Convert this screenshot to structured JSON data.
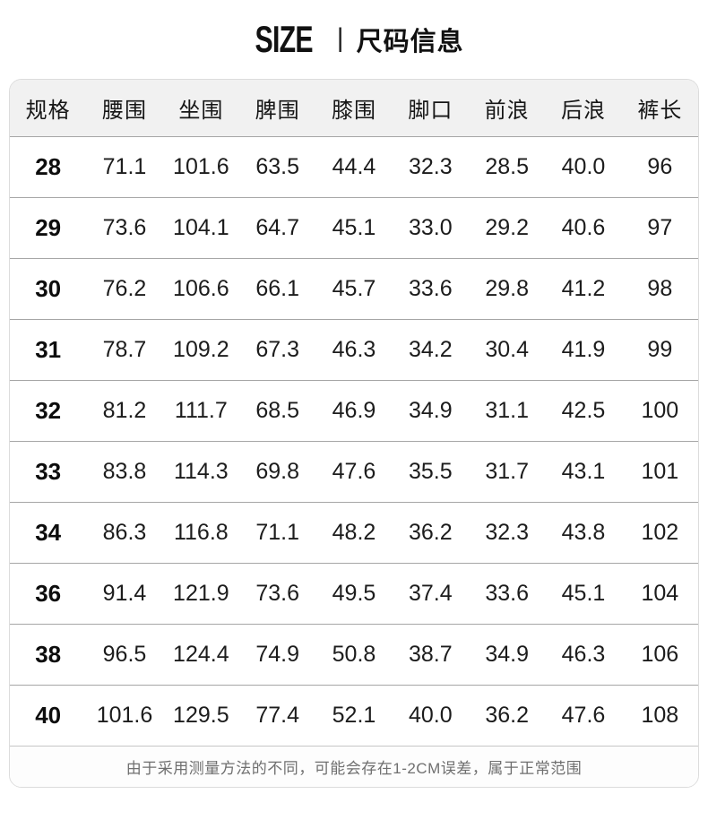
{
  "title": {
    "en": "SIZE",
    "divider": "|",
    "zh": "尺码信息"
  },
  "table": {
    "headers": [
      "规格",
      "腰围",
      "坐围",
      "脾围",
      "膝围",
      "脚口",
      "前浪",
      "后浪",
      "裤长"
    ],
    "rows": [
      [
        "28",
        "71.1",
        "101.6",
        "63.5",
        "44.4",
        "32.3",
        "28.5",
        "40.0",
        "96"
      ],
      [
        "29",
        "73.6",
        "104.1",
        "64.7",
        "45.1",
        "33.0",
        "29.2",
        "40.6",
        "97"
      ],
      [
        "30",
        "76.2",
        "106.6",
        "66.1",
        "45.7",
        "33.6",
        "29.8",
        "41.2",
        "98"
      ],
      [
        "31",
        "78.7",
        "109.2",
        "67.3",
        "46.3",
        "34.2",
        "30.4",
        "41.9",
        "99"
      ],
      [
        "32",
        "81.2",
        "111.7",
        "68.5",
        "46.9",
        "34.9",
        "31.1",
        "42.5",
        "100"
      ],
      [
        "33",
        "83.8",
        "114.3",
        "69.8",
        "47.6",
        "35.5",
        "31.7",
        "43.1",
        "101"
      ],
      [
        "34",
        "86.3",
        "116.8",
        "71.1",
        "48.2",
        "36.2",
        "32.3",
        "43.8",
        "102"
      ],
      [
        "36",
        "91.4",
        "121.9",
        "73.6",
        "49.5",
        "37.4",
        "33.6",
        "45.1",
        "104"
      ],
      [
        "38",
        "96.5",
        "124.4",
        "74.9",
        "50.8",
        "38.7",
        "34.9",
        "46.3",
        "106"
      ],
      [
        "40",
        "101.6",
        "129.5",
        "77.4",
        "52.1",
        "40.0",
        "36.2",
        "47.6",
        "108"
      ]
    ]
  },
  "footer": {
    "note": "由于采用测量方法的不同，可能会存在1-2CM误差，属于正常范围"
  },
  "colors": {
    "header_bg": "#f1f1f1",
    "row_separator": "#a6a6a6",
    "card_border": "#dcdcdc",
    "text": "#1c1c1c",
    "footer_text": "#6f6f6f"
  }
}
